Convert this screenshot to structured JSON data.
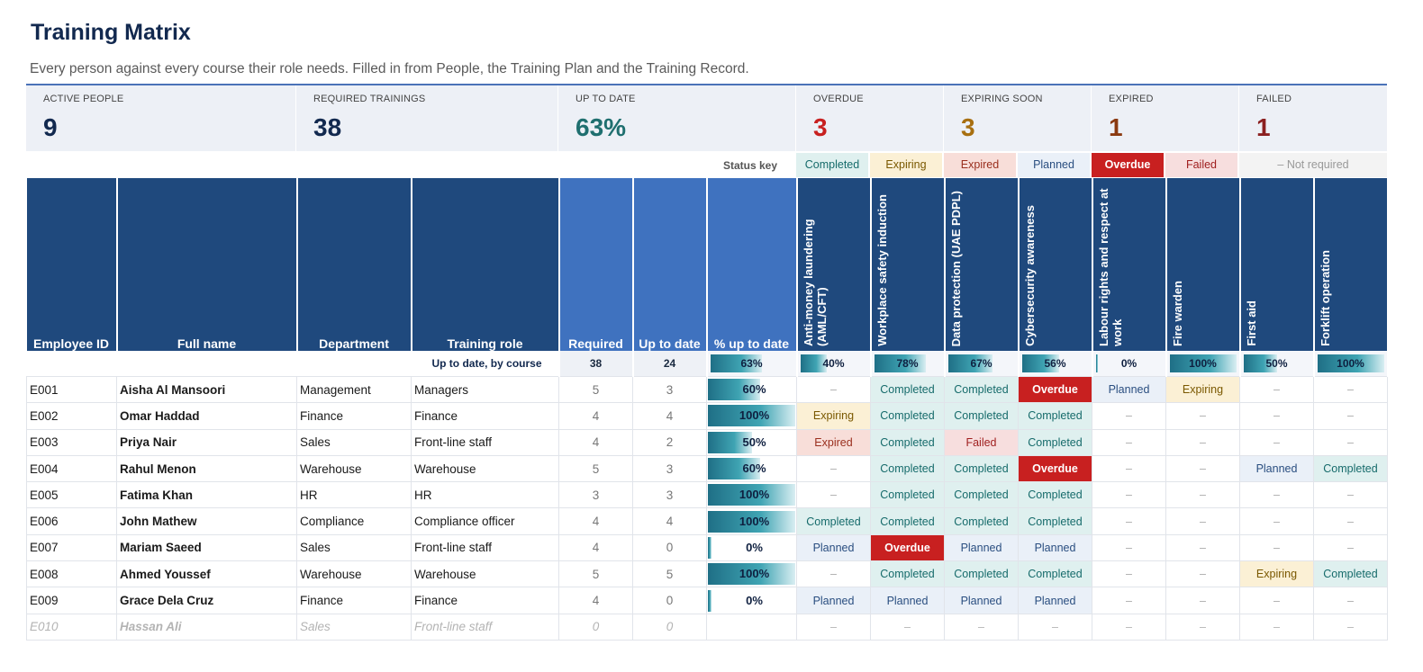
{
  "page": {
    "title": "Training Matrix",
    "subtitle": "Every person against every course their role needs. Filled in from People, the Training Plan and the Training Record."
  },
  "colors": {
    "navy": "#12294f",
    "teal": "#1f6f6f",
    "red": "#c82020",
    "amber": "#a86f10",
    "darkred": "#8b2500",
    "header_blue": "#1f497d",
    "header_light": "#3f72bf"
  },
  "kpis": [
    {
      "label": "ACTIVE PEOPLE",
      "value": "9",
      "color": "#12294f"
    },
    {
      "label": "REQUIRED TRAININGS",
      "value": "38",
      "color": "#12294f"
    },
    {
      "label": "UP TO DATE",
      "value": "63%",
      "color": "#1f6f6f"
    },
    {
      "label": "OVERDUE",
      "value": "3",
      "color": "#c82020"
    },
    {
      "label": "EXPIRING SOON",
      "value": "3",
      "color": "#a86f10"
    },
    {
      "label": "EXPIRED",
      "value": "1",
      "color": "#8b3a10"
    },
    {
      "label": "FAILED",
      "value": "1",
      "color": "#8b2020"
    }
  ],
  "status_key": {
    "label": "Status key",
    "items": [
      {
        "text": "Completed",
        "cls": "s-completed"
      },
      {
        "text": "Expiring",
        "cls": "s-expiring"
      },
      {
        "text": "Expired",
        "cls": "s-expired"
      },
      {
        "text": "Planned",
        "cls": "s-planned"
      },
      {
        "text": "Overdue",
        "cls": "s-overdue"
      },
      {
        "text": "Failed",
        "cls": "s-failed"
      },
      {
        "text": "– Not required",
        "cls": "s-notreq-key"
      }
    ]
  },
  "columns": {
    "employee_id": "Employee ID",
    "full_name": "Full name",
    "department": "Department",
    "training_role": "Training role",
    "required": "Required",
    "up_to_date": "Up to date",
    "pct": "% up to date",
    "courses": [
      "Anti-money laundering (AML/CFT)",
      "Workplace safety induction",
      "Data protection (UAE PDPL)",
      "Cybersecurity awareness",
      "Labour rights and respect at work",
      "Fire warden",
      "First aid",
      "Forklift operation"
    ]
  },
  "summary": {
    "label": "Up to date, by course",
    "required": "38",
    "up_to_date": "24",
    "pct": {
      "text": "63%",
      "fraction": 0.63
    },
    "courses": [
      {
        "text": "40%",
        "fraction": 0.4
      },
      {
        "text": "78%",
        "fraction": 0.78
      },
      {
        "text": "67%",
        "fraction": 0.67
      },
      {
        "text": "56%",
        "fraction": 0.56
      },
      {
        "text": "0%",
        "fraction": 0.0
      },
      {
        "text": "100%",
        "fraction": 1.0
      },
      {
        "text": "50%",
        "fraction": 0.5
      },
      {
        "text": "100%",
        "fraction": 1.0
      }
    ]
  },
  "rows": [
    {
      "id": "E001",
      "name": "Aisha Al Mansoori",
      "dept": "Management",
      "role": "Managers",
      "required": "5",
      "uptodate": "3",
      "pct": "60%",
      "fraction": 0.6,
      "active": true,
      "courses": [
        "–",
        "Completed",
        "Completed",
        "Overdue",
        "Planned",
        "Expiring",
        "–",
        "–"
      ]
    },
    {
      "id": "E002",
      "name": "Omar Haddad",
      "dept": "Finance",
      "role": "Finance",
      "required": "4",
      "uptodate": "4",
      "pct": "100%",
      "fraction": 1.0,
      "active": true,
      "courses": [
        "Expiring",
        "Completed",
        "Completed",
        "Completed",
        "–",
        "–",
        "–",
        "–"
      ]
    },
    {
      "id": "E003",
      "name": "Priya Nair",
      "dept": "Sales",
      "role": "Front-line staff",
      "required": "4",
      "uptodate": "2",
      "pct": "50%",
      "fraction": 0.5,
      "active": true,
      "courses": [
        "Expired",
        "Completed",
        "Failed",
        "Completed",
        "–",
        "–",
        "–",
        "–"
      ]
    },
    {
      "id": "E004",
      "name": "Rahul Menon",
      "dept": "Warehouse",
      "role": "Warehouse",
      "required": "5",
      "uptodate": "3",
      "pct": "60%",
      "fraction": 0.6,
      "active": true,
      "courses": [
        "–",
        "Completed",
        "Completed",
        "Overdue",
        "–",
        "–",
        "Planned",
        "Completed"
      ]
    },
    {
      "id": "E005",
      "name": "Fatima Khan",
      "dept": "HR",
      "role": "HR",
      "required": "3",
      "uptodate": "3",
      "pct": "100%",
      "fraction": 1.0,
      "active": true,
      "courses": [
        "–",
        "Completed",
        "Completed",
        "Completed",
        "–",
        "–",
        "–",
        "–"
      ]
    },
    {
      "id": "E006",
      "name": "John Mathew",
      "dept": "Compliance",
      "role": "Compliance officer",
      "required": "4",
      "uptodate": "4",
      "pct": "100%",
      "fraction": 1.0,
      "active": true,
      "courses": [
        "Completed",
        "Completed",
        "Completed",
        "Completed",
        "–",
        "–",
        "–",
        "–"
      ]
    },
    {
      "id": "E007",
      "name": "Mariam Saeed",
      "dept": "Sales",
      "role": "Front-line staff",
      "required": "4",
      "uptodate": "0",
      "pct": "0%",
      "fraction": 0.0,
      "active": true,
      "courses": [
        "Planned",
        "Overdue",
        "Planned",
        "Planned",
        "–",
        "–",
        "–",
        "–"
      ]
    },
    {
      "id": "E008",
      "name": "Ahmed Youssef",
      "dept": "Warehouse",
      "role": "Warehouse",
      "required": "5",
      "uptodate": "5",
      "pct": "100%",
      "fraction": 1.0,
      "active": true,
      "courses": [
        "–",
        "Completed",
        "Completed",
        "Completed",
        "–",
        "–",
        "Expiring",
        "Completed"
      ]
    },
    {
      "id": "E009",
      "name": "Grace Dela Cruz",
      "dept": "Finance",
      "role": "Finance",
      "required": "4",
      "uptodate": "0",
      "pct": "0%",
      "fraction": 0.0,
      "active": true,
      "courses": [
        "Planned",
        "Planned",
        "Planned",
        "Planned",
        "–",
        "–",
        "–",
        "–"
      ]
    },
    {
      "id": "E010",
      "name": "Hassan Ali",
      "dept": "Sales",
      "role": "Front-line staff",
      "required": "0",
      "uptodate": "0",
      "pct": "",
      "fraction": null,
      "active": false,
      "courses": [
        "–",
        "–",
        "–",
        "–",
        "–",
        "–",
        "–",
        "–"
      ]
    }
  ]
}
